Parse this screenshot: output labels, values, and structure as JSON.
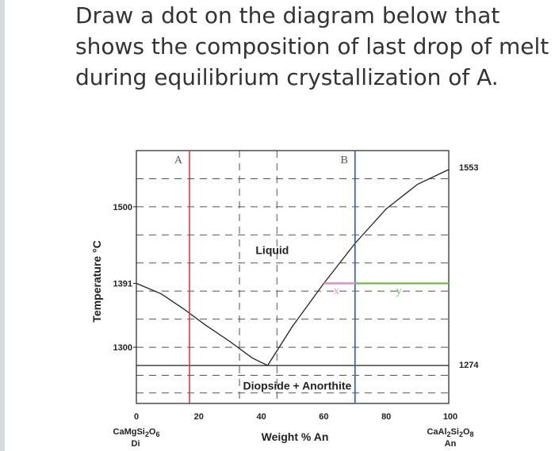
{
  "question": {
    "lines": [
      "Draw a dot on the diagram below that",
      "shows the composition of last drop of melt",
      "during equilibrium crystallization of A."
    ]
  },
  "chart_data": {
    "type": "line",
    "xlabel": "Weight % An",
    "ylabel": "Temperature °C",
    "xlim": [
      0,
      100
    ],
    "ylim": [
      1220,
      1580
    ],
    "x_ticks": [
      {
        "value": 0,
        "label": "0"
      },
      {
        "value": 20,
        "label": "20"
      },
      {
        "value": 40,
        "label": "40"
      },
      {
        "value": 60,
        "label": "60"
      },
      {
        "value": 80,
        "label": "80"
      },
      {
        "value": 100,
        "label": "100"
      }
    ],
    "y_ticks": [
      {
        "value": 1500,
        "label": "1500"
      },
      {
        "value": 1391,
        "label": "1391"
      },
      {
        "value": 1300,
        "label": "1300"
      }
    ],
    "right_labels": [
      {
        "value": 1553,
        "label": "1553"
      },
      {
        "value": 1274,
        "label": "1274"
      }
    ],
    "end_members": {
      "left": {
        "formula_main": "CaMgSi",
        "sub1": "2",
        "o": "O",
        "sub2": "6",
        "abbr": "Di"
      },
      "right": {
        "formula_main": "CaAl",
        "sub1": "2",
        "si": "Si",
        "sub2": "2",
        "o": "O",
        "sub3": "8",
        "abbr": "An"
      }
    },
    "liquidus": {
      "left": [
        [
          0,
          1391
        ],
        [
          8,
          1376
        ],
        [
          15,
          1355
        ],
        [
          22,
          1332
        ],
        [
          30,
          1308
        ],
        [
          37,
          1285
        ],
        [
          42,
          1274
        ]
      ],
      "right": [
        [
          42,
          1274
        ],
        [
          50,
          1330
        ],
        [
          60,
          1391
        ],
        [
          70,
          1448
        ],
        [
          80,
          1497
        ],
        [
          90,
          1532
        ],
        [
          100,
          1553
        ]
      ]
    },
    "eutectic": {
      "x": 42,
      "y": 1274
    },
    "eutectic_isotherm": 1274,
    "field_labels": {
      "liquid": "Liquid",
      "solid": "Diopside + Anorthite"
    },
    "bulk_compositions": [
      {
        "label": "A",
        "x": 17,
        "color": "#e23b3b"
      },
      {
        "label": "B",
        "x": 70,
        "color": "#3355cc"
      }
    ],
    "tie_line": {
      "y": 1391,
      "x_start": 60,
      "x_end": 100,
      "color": "#6fb84a"
    },
    "tie_line_pink": {
      "y": 1391,
      "x_start": 60,
      "x_end": 70,
      "color": "#e08ad0"
    },
    "points": [
      {
        "label": "x",
        "x": 64,
        "y": 1380,
        "color": "#e08ad0"
      },
      {
        "label": "y",
        "x": 84,
        "y": 1380,
        "color": "#6fb84a"
      }
    ],
    "dashed_guides_x": [
      33,
      45
    ],
    "grid": true
  }
}
